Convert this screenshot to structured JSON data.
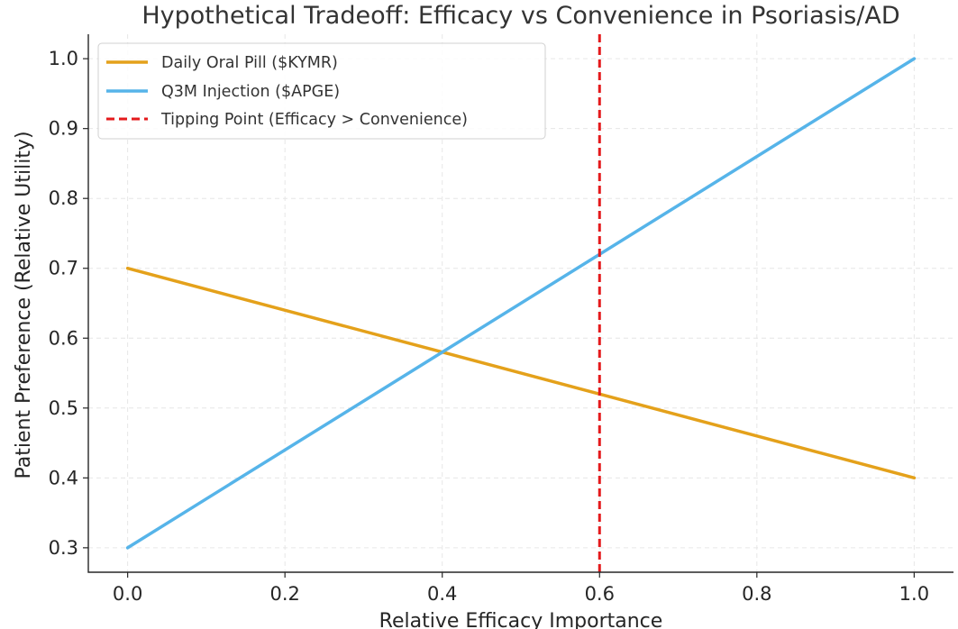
{
  "chart_data": {
    "type": "line",
    "title": "Hypothetical Tradeoff: Efficacy vs Convenience in Psoriasis/AD",
    "xlabel": "Relative Efficacy Importance",
    "ylabel": "Patient Preference (Relative Utility)",
    "xlim": [
      -0.05,
      1.05
    ],
    "ylim": [
      0.265,
      1.035
    ],
    "xticks": [
      0.0,
      0.2,
      0.4,
      0.6,
      0.8,
      1.0
    ],
    "xtick_labels": [
      "0.0",
      "0.2",
      "0.4",
      "0.6",
      "0.8",
      "1.0"
    ],
    "yticks": [
      0.3,
      0.4,
      0.5,
      0.6,
      0.7,
      0.8,
      0.9,
      1.0
    ],
    "ytick_labels": [
      "0.3",
      "0.4",
      "0.5",
      "0.6",
      "0.7",
      "0.8",
      "0.9",
      "1.0"
    ],
    "grid": true,
    "legend_position": "top-left",
    "series": [
      {
        "name": "Daily Oral Pill ($KYMR)",
        "color": "#E4A11B",
        "x": [
          0.0,
          1.0
        ],
        "y": [
          0.7,
          0.4
        ],
        "style": "solid"
      },
      {
        "name": "Q3M Injection ($APGE)",
        "color": "#56B4E9",
        "x": [
          0.0,
          1.0
        ],
        "y": [
          0.3,
          1.0
        ],
        "style": "solid"
      }
    ],
    "vlines": [
      {
        "name": "Tipping Point (Efficacy > Convenience)",
        "x": 0.6,
        "color": "#E41A1C",
        "style": "dashed"
      }
    ]
  }
}
